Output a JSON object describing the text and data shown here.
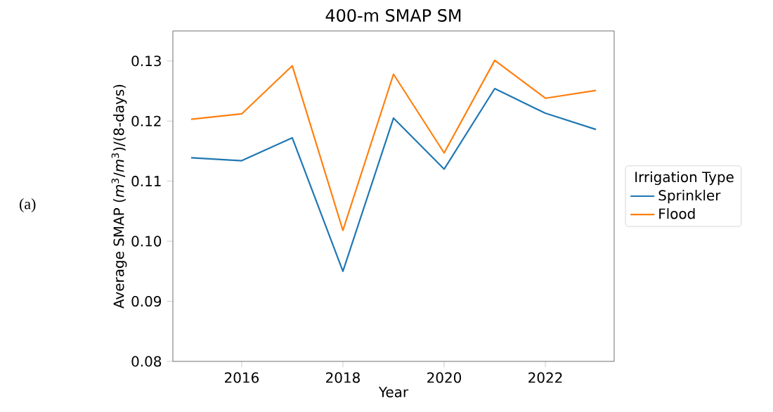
{
  "chart_data": {
    "type": "line",
    "title": "400-m SMAP SM",
    "xlabel": "Year",
    "ylabel": "Average SMAP (*m*$^{3}$/*m*$^{3}$)/(8-days)",
    "legend_title": "Irrigation Type",
    "annotations": [
      "(a)"
    ],
    "x": [
      2015,
      2016,
      2017,
      2018,
      2019,
      2020,
      2021,
      2022,
      2023
    ],
    "series": [
      {
        "name": "Sprinkler",
        "color": "#1f77b4",
        "values": [
          0.1139,
          0.1134,
          0.1172,
          0.095,
          0.1205,
          0.112,
          0.1254,
          0.1213,
          0.1186
        ]
      },
      {
        "name": "Flood",
        "color": "#ff7f0e",
        "values": [
          0.1203,
          0.1212,
          0.1292,
          0.1018,
          0.1278,
          0.1147,
          0.1301,
          0.1238,
          0.1251
        ]
      }
    ],
    "xlim": [
      2014.64,
      2023.36
    ],
    "ylim": [
      0.08,
      0.135
    ],
    "xticks": [
      2016,
      2018,
      2020,
      2022
    ],
    "yticks": [
      {
        "value": 0.08,
        "label": "0.08"
      },
      {
        "value": 0.09,
        "label": "0.09"
      },
      {
        "value": 0.1,
        "label": "0.10"
      },
      {
        "value": 0.11,
        "label": "0.11"
      },
      {
        "value": 0.12,
        "label": "0.12"
      },
      {
        "value": 0.13,
        "label": "0.13"
      }
    ],
    "legend": "right",
    "marker": "none",
    "line_style": "solid"
  }
}
